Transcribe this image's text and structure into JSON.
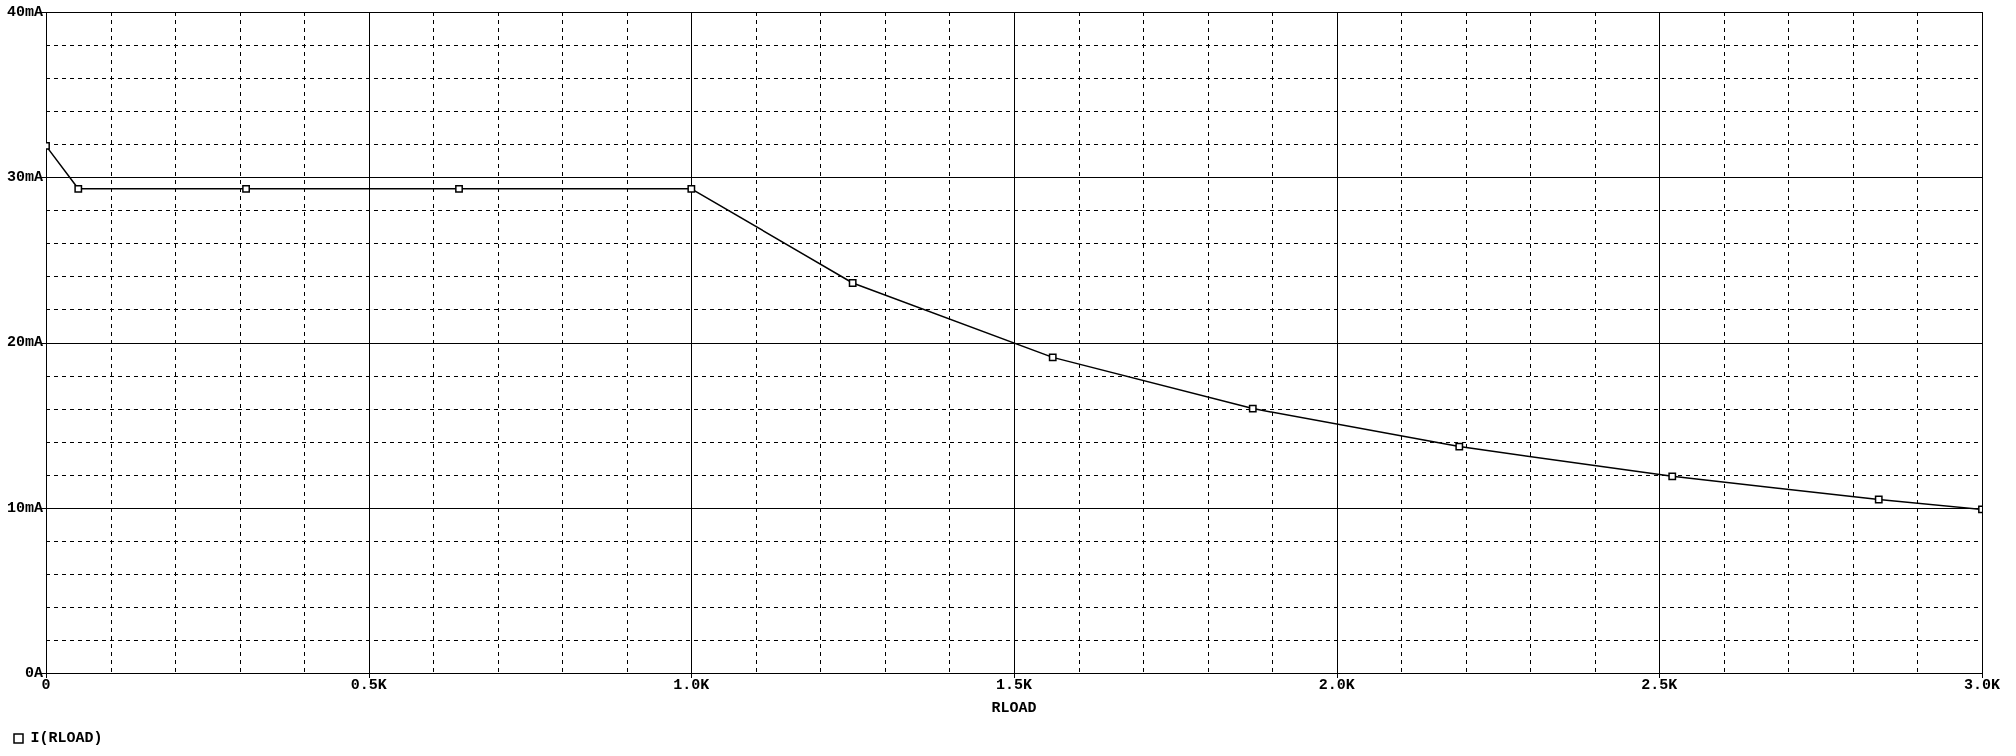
{
  "chart_data": {
    "type": "line",
    "xlabel": "RLOAD",
    "legend": "bottom left",
    "grid": true,
    "marker": "square",
    "xlim": [
      0,
      3.0
    ],
    "ylim": [
      0,
      40
    ],
    "xticks": [
      {
        "value": 0,
        "label": "0"
      },
      {
        "value": 0.1,
        "label": null
      },
      {
        "value": 0.2,
        "label": null
      },
      {
        "value": 0.3,
        "label": null
      },
      {
        "value": 0.4,
        "label": null
      },
      {
        "value": 0.5,
        "label": "0.5K"
      },
      {
        "value": 0.6,
        "label": null
      },
      {
        "value": 0.7,
        "label": null
      },
      {
        "value": 0.8,
        "label": null
      },
      {
        "value": 0.9,
        "label": null
      },
      {
        "value": 1.0,
        "label": "1.0K"
      },
      {
        "value": 1.1,
        "label": null
      },
      {
        "value": 1.2,
        "label": null
      },
      {
        "value": 1.3,
        "label": null
      },
      {
        "value": 1.4,
        "label": null
      },
      {
        "value": 1.5,
        "label": "1.5K"
      },
      {
        "value": 1.6,
        "label": null
      },
      {
        "value": 1.7,
        "label": null
      },
      {
        "value": 1.8,
        "label": null
      },
      {
        "value": 1.9,
        "label": null
      },
      {
        "value": 2.0,
        "label": "2.0K"
      },
      {
        "value": 2.1,
        "label": null
      },
      {
        "value": 2.2,
        "label": null
      },
      {
        "value": 2.3,
        "label": null
      },
      {
        "value": 2.4,
        "label": null
      },
      {
        "value": 2.5,
        "label": "2.5K"
      },
      {
        "value": 2.6,
        "label": null
      },
      {
        "value": 2.7,
        "label": null
      },
      {
        "value": 2.8,
        "label": null
      },
      {
        "value": 2.9,
        "label": null
      },
      {
        "value": 3.0,
        "label": "3.0K"
      }
    ],
    "yticks": [
      {
        "value": 0,
        "label": "0A"
      },
      {
        "value": 2,
        "label": null
      },
      {
        "value": 4,
        "label": null
      },
      {
        "value": 6,
        "label": null
      },
      {
        "value": 8,
        "label": null
      },
      {
        "value": 10,
        "label": "10mA"
      },
      {
        "value": 12,
        "label": null
      },
      {
        "value": 14,
        "label": null
      },
      {
        "value": 16,
        "label": null
      },
      {
        "value": 18,
        "label": null
      },
      {
        "value": 20,
        "label": "20mA"
      },
      {
        "value": 22,
        "label": null
      },
      {
        "value": 24,
        "label": null
      },
      {
        "value": 26,
        "label": null
      },
      {
        "value": 28,
        "label": null
      },
      {
        "value": 30,
        "label": "30mA"
      },
      {
        "value": 32,
        "label": null
      },
      {
        "value": 34,
        "label": null
      },
      {
        "value": 36,
        "label": null
      },
      {
        "value": 38,
        "label": null
      },
      {
        "value": 40,
        "label": "40mA"
      }
    ],
    "series": [
      {
        "name": "I(RLOAD)",
        "color": "#000000",
        "x": [
          0,
          0.05,
          0.31,
          0.64,
          1.0,
          1.25,
          1.56,
          1.87,
          2.19,
          2.52,
          2.84,
          3.0
        ],
        "values": [
          31.9,
          29.3,
          29.3,
          29.3,
          29.3,
          23.6,
          19.1,
          16.0,
          13.7,
          11.9,
          10.5,
          9.9
        ]
      }
    ]
  }
}
